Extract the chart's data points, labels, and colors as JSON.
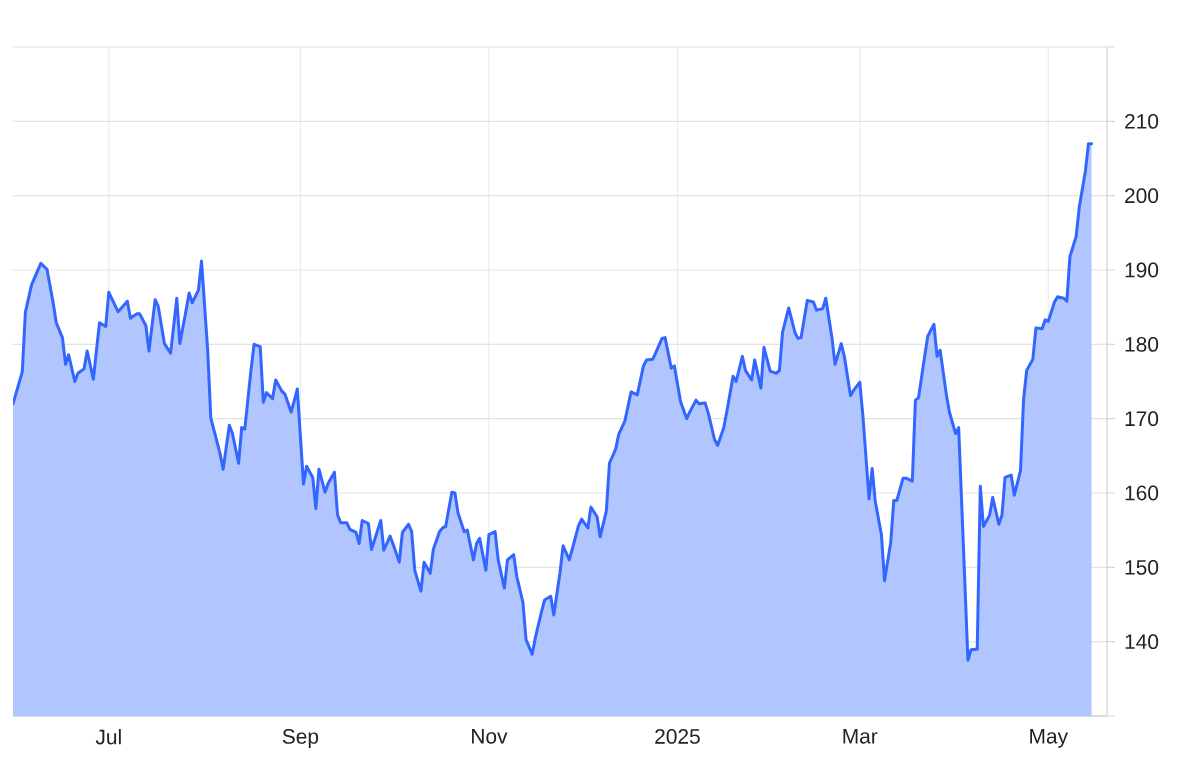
{
  "chart_data": {
    "type": "area",
    "color": "#3366ff",
    "x": [
      "2024-05-31",
      "2024-06-03",
      "2024-06-04",
      "2024-06-06",
      "2024-06-09",
      "2024-06-11",
      "2024-06-13",
      "2024-06-14",
      "2024-06-16",
      "2024-06-17",
      "2024-06-18",
      "2024-06-20",
      "2024-06-21",
      "2024-06-23",
      "2024-06-24",
      "2024-06-26",
      "2024-06-27",
      "2024-06-28",
      "2024-06-30",
      "2024-07-01",
      "2024-07-04",
      "2024-07-07",
      "2024-07-08",
      "2024-07-10",
      "2024-07-11",
      "2024-07-13",
      "2024-07-14",
      "2024-07-16",
      "2024-07-17",
      "2024-07-19",
      "2024-07-21",
      "2024-07-23",
      "2024-07-24",
      "2024-07-26",
      "2024-07-27",
      "2024-07-28",
      "2024-07-30",
      "2024-07-31",
      "2024-08-02",
      "2024-08-03",
      "2024-08-05",
      "2024-08-06",
      "2024-08-07",
      "2024-08-09",
      "2024-08-10",
      "2024-08-12",
      "2024-08-13",
      "2024-08-14",
      "2024-08-16",
      "2024-08-17",
      "2024-08-19",
      "2024-08-20",
      "2024-08-21",
      "2024-08-23",
      "2024-08-24",
      "2024-08-26",
      "2024-08-27",
      "2024-08-29",
      "2024-08-30",
      "2024-08-31",
      "2024-09-02",
      "2024-09-03",
      "2024-09-05",
      "2024-09-06",
      "2024-09-07",
      "2024-09-09",
      "2024-09-10",
      "2024-09-12",
      "2024-09-13",
      "2024-09-14",
      "2024-09-16",
      "2024-09-17",
      "2024-09-19",
      "2024-09-20",
      "2024-09-21",
      "2024-09-23",
      "2024-09-24",
      "2024-09-27",
      "2024-09-28",
      "2024-09-30",
      "2024-10-01",
      "2024-10-03",
      "2024-10-04",
      "2024-10-06",
      "2024-10-07",
      "2024-10-08",
      "2024-10-10",
      "2024-10-11",
      "2024-10-13",
      "2024-10-14",
      "2024-10-16",
      "2024-10-17",
      "2024-10-18",
      "2024-10-20",
      "2024-10-21",
      "2024-10-22",
      "2024-10-24",
      "2024-10-25",
      "2024-10-27",
      "2024-10-28",
      "2024-10-29",
      "2024-10-31",
      "2024-11-01",
      "2024-11-03",
      "2024-11-04",
      "2024-11-06",
      "2024-11-07",
      "2024-11-09",
      "2024-11-10",
      "2024-11-12",
      "2024-11-13",
      "2024-11-15",
      "2024-11-16",
      "2024-11-18",
      "2024-11-19",
      "2024-11-21",
      "2024-11-22",
      "2024-11-24",
      "2024-11-25",
      "2024-11-27",
      "2024-11-28",
      "2024-11-30",
      "2024-12-01",
      "2024-12-03",
      "2024-12-04",
      "2024-12-06",
      "2024-12-07",
      "2024-12-09",
      "2024-12-10",
      "2024-12-12",
      "2024-12-13",
      "2024-12-15",
      "2024-12-17",
      "2024-12-19",
      "2024-12-21",
      "2024-12-22",
      "2024-12-24",
      "2024-12-25",
      "2024-12-27",
      "2024-12-28",
      "2024-12-30",
      "2024-12-31",
      "2025-01-02",
      "2025-01-04",
      "2025-01-05",
      "2025-01-07",
      "2025-01-08",
      "2025-01-10",
      "2025-01-11",
      "2025-01-13",
      "2025-01-14",
      "2025-01-16",
      "2025-01-17",
      "2025-01-19",
      "2025-01-20",
      "2025-01-22",
      "2025-01-23",
      "2025-01-25",
      "2025-01-26",
      "2025-01-28",
      "2025-01-29",
      "2025-01-31",
      "2025-02-02",
      "2025-02-03",
      "2025-02-04",
      "2025-02-06",
      "2025-02-08",
      "2025-02-09",
      "2025-02-10",
      "2025-02-12",
      "2025-02-14",
      "2025-02-15",
      "2025-02-17",
      "2025-02-18",
      "2025-02-20",
      "2025-02-21",
      "2025-02-23",
      "2025-02-24",
      "2025-02-26",
      "2025-02-27",
      "2025-03-01",
      "2025-03-02",
      "2025-03-04",
      "2025-03-05",
      "2025-03-06",
      "2025-03-08",
      "2025-03-09",
      "2025-03-11",
      "2025-03-12",
      "2025-03-13",
      "2025-03-15",
      "2025-03-16",
      "2025-03-18",
      "2025-03-19",
      "2025-03-20",
      "2025-03-22",
      "2025-03-23",
      "2025-03-25",
      "2025-03-26",
      "2025-03-27",
      "2025-03-29",
      "2025-03-30",
      "2025-04-01",
      "2025-04-02",
      "2025-04-05",
      "2025-04-06",
      "2025-04-08",
      "2025-04-09",
      "2025-04-10",
      "2025-04-12",
      "2025-04-13",
      "2025-04-15",
      "2025-04-16",
      "2025-04-17",
      "2025-04-19",
      "2025-04-20",
      "2025-04-22",
      "2025-04-23",
      "2025-04-24",
      "2025-04-26",
      "2025-04-27",
      "2025-04-29",
      "2025-04-30",
      "2025-05-01",
      "2025-05-03",
      "2025-05-04",
      "2025-05-06",
      "2025-05-07",
      "2025-05-08",
      "2025-05-10",
      "2025-05-11",
      "2025-05-13",
      "2025-05-14",
      "2025-05-15"
    ],
    "values": [
      172.0,
      176.3,
      184.3,
      188.0,
      190.9,
      190.1,
      185.6,
      182.9,
      180.9,
      177.3,
      178.6,
      175.0,
      176.1,
      176.7,
      179.1,
      175.3,
      179.2,
      182.9,
      182.4,
      187.0,
      184.4,
      185.8,
      183.5,
      184.1,
      184.1,
      182.5,
      179.1,
      186.0,
      185.1,
      180.1,
      178.8,
      186.2,
      180.1,
      184.6,
      186.9,
      185.6,
      187.3,
      191.2,
      179.2,
      170.1,
      166.9,
      165.3,
      163.2,
      169.1,
      168.0,
      164.0,
      168.8,
      168.6,
      176.5,
      180.0,
      179.7,
      172.2,
      173.5,
      172.7,
      175.2,
      173.7,
      173.3,
      170.9,
      172.4,
      174.0,
      161.2,
      163.6,
      162.1,
      157.9,
      163.2,
      160.1,
      161.3,
      162.8,
      157.1,
      156.0,
      156.0,
      155.1,
      154.7,
      153.2,
      156.3,
      155.9,
      152.4,
      156.3,
      152.3,
      154.2,
      153.1,
      150.7,
      154.7,
      155.8,
      154.8,
      149.6,
      146.8,
      150.7,
      149.2,
      152.4,
      154.8,
      155.3,
      155.5,
      160.1,
      160.0,
      157.3,
      154.8,
      155.0,
      151.0,
      153.2,
      153.9,
      149.6,
      154.4,
      154.8,
      151.0,
      147.2,
      151.0,
      151.7,
      148.8,
      145.3,
      140.3,
      138.3,
      140.5,
      144.0,
      145.6,
      146.1,
      143.6,
      149.3,
      152.9,
      151.0,
      152.5,
      155.6,
      156.5,
      155.3,
      158.1,
      156.8,
      154.1,
      157.6,
      164.0,
      165.9,
      167.9,
      169.7,
      173.6,
      173.2,
      177.1,
      177.9,
      178.0,
      178.9,
      180.8,
      180.9,
      176.8,
      177.1,
      172.3,
      170.0,
      170.9,
      172.5,
      172.0,
      172.1,
      170.7,
      167.2,
      166.4,
      168.8,
      171.0,
      175.7,
      175.0,
      178.4,
      176.5,
      175.2,
      177.9,
      174.1,
      179.6,
      176.4,
      176.1,
      176.5,
      181.6,
      184.9,
      181.6,
      180.8,
      180.9,
      185.9,
      185.7,
      184.6,
      184.8,
      186.2,
      180.9,
      177.3,
      180.1,
      178.4,
      173.1,
      173.8,
      174.9,
      170.4,
      159.2,
      163.3,
      158.9,
      154.4,
      148.2,
      153.3,
      159.0,
      159.0,
      162.0,
      162.0,
      161.6,
      172.5,
      172.8,
      178.4,
      181.1,
      182.7,
      178.4,
      179.2,
      173.3,
      170.9,
      168.0,
      168.8,
      137.5,
      138.9,
      139.0,
      160.9,
      155.5,
      157.0,
      159.4,
      155.8,
      157.0,
      162.1,
      162.4,
      159.7,
      163.0,
      172.6,
      176.5,
      178.0,
      182.2,
      182.1,
      183.3,
      183.1,
      185.7,
      186.4,
      186.2,
      185.8,
      191.8,
      194.5,
      198.4,
      203.3,
      207.0,
      207.0
    ],
    "xlim": [
      "2024-05-31",
      "2025-05-20"
    ],
    "ylim": [
      130,
      220
    ],
    "xticks": [
      {
        "value": "2024-07-01",
        "label": "Jul"
      },
      {
        "value": "2024-09-01",
        "label": "Sep"
      },
      {
        "value": "2024-11-01",
        "label": "Nov"
      },
      {
        "value": "2025-01-01",
        "label": "2025"
      },
      {
        "value": "2025-03-01",
        "label": "Mar"
      },
      {
        "value": "2025-05-01",
        "label": "May"
      }
    ],
    "yticks": [
      {
        "value": 130,
        "label": null
      },
      140,
      150,
      160,
      170,
      180,
      190,
      200,
      210,
      {
        "value": 220,
        "label": null
      }
    ],
    "grid": true
  }
}
